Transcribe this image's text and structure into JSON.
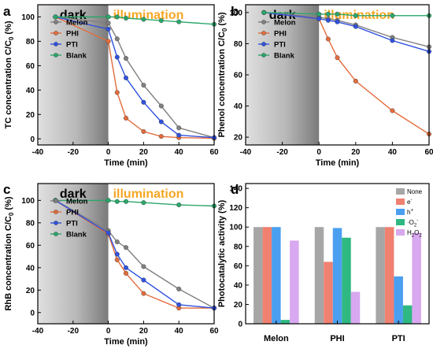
{
  "chart_data": [
    {
      "panel": "a",
      "type": "line",
      "annotations": [
        "dark",
        "illumination"
      ],
      "xlabel": "Time (min)",
      "ylabel": "TC concentration C/C0 (%)",
      "xlim": [
        -40,
        60
      ],
      "ylim": [
        -5,
        110
      ],
      "xticks": [
        -40,
        -20,
        0,
        20,
        40,
        60
      ],
      "yticks": [
        0,
        20,
        40,
        60,
        80,
        100
      ],
      "x": [
        -30,
        0,
        5,
        10,
        20,
        30,
        40,
        60
      ],
      "series": [
        {
          "name": "Melon",
          "color": "#808080",
          "values": [
            100,
            95,
            82,
            66,
            44,
            27,
            9,
            1
          ]
        },
        {
          "name": "PHI",
          "color": "#e46c3c",
          "values": [
            100,
            80,
            38,
            17,
            6,
            2,
            1,
            0.5
          ]
        },
        {
          "name": "PTI",
          "color": "#2f52e0",
          "values": [
            100,
            90,
            67,
            50,
            30,
            14,
            3,
            1
          ]
        },
        {
          "name": "Blank",
          "color": "#2aa76a",
          "values": [
            100,
            100,
            100,
            99,
            98,
            97,
            96,
            94
          ]
        }
      ],
      "legend": "left"
    },
    {
      "panel": "b",
      "type": "line",
      "annotations": [
        "dark",
        "illumination"
      ],
      "xlabel": "Time (min)",
      "ylabel": "Phenol concentration C/C0 (%)",
      "xlim": [
        -40,
        60
      ],
      "ylim": [
        15,
        105
      ],
      "xticks": [
        -40,
        -20,
        0,
        20,
        40,
        60
      ],
      "yticks": [
        20,
        40,
        60,
        80,
        100
      ],
      "x": [
        -30,
        0,
        5,
        10,
        20,
        40,
        60
      ],
      "series": [
        {
          "name": "Melon",
          "color": "#808080",
          "values": [
            100,
            97,
            96,
            95,
            92,
            84,
            78
          ]
        },
        {
          "name": "PHI",
          "color": "#e46c3c",
          "values": [
            100,
            96,
            83,
            71,
            56,
            37,
            22
          ]
        },
        {
          "name": "PTI",
          "color": "#2f52e0",
          "values": [
            100,
            96,
            95,
            94,
            91,
            82,
            75
          ]
        },
        {
          "name": "Blank",
          "color": "#2aa76a",
          "values": [
            100,
            99,
            99,
            99,
            98,
            98,
            98
          ]
        }
      ],
      "legend": "left"
    },
    {
      "panel": "c",
      "type": "line",
      "annotations": [
        "dark",
        "illumination"
      ],
      "xlabel": "Time (min)",
      "ylabel": "RhB concentration C/C0 (%)",
      "xlim": [
        -40,
        60
      ],
      "ylim": [
        -10,
        115
      ],
      "xticks": [
        -40,
        -20,
        0,
        20,
        40,
        60
      ],
      "yticks": [
        0,
        20,
        40,
        60,
        80,
        100
      ],
      "x": [
        -30,
        0,
        5,
        10,
        20,
        40,
        60
      ],
      "series": [
        {
          "name": "Melon",
          "color": "#808080",
          "values": [
            100,
            73,
            63,
            58,
            41,
            21,
            4
          ]
        },
        {
          "name": "PHI",
          "color": "#e46c3c",
          "values": [
            100,
            70,
            47,
            35,
            17,
            4,
            4
          ]
        },
        {
          "name": "PTI",
          "color": "#2f52e0",
          "values": [
            100,
            71,
            52,
            40,
            29,
            7,
            4
          ]
        },
        {
          "name": "Blank",
          "color": "#2aa76a",
          "values": [
            100,
            100,
            99,
            99,
            98,
            96,
            95
          ]
        }
      ],
      "legend": "left"
    },
    {
      "panel": "d",
      "type": "bar",
      "xlabel": "",
      "ylabel": "Photocatalytic activity (%)",
      "ylim": [
        0,
        145
      ],
      "yticks": [
        0,
        20,
        40,
        60,
        80,
        100,
        120,
        140
      ],
      "categories": [
        "Melon",
        "PHI",
        "PTI"
      ],
      "series": [
        {
          "name": "None",
          "color": "#a6a6a6",
          "values": [
            100,
            100,
            100
          ]
        },
        {
          "name": "e-",
          "color": "#f08070",
          "values": [
            100,
            64,
            100
          ]
        },
        {
          "name": "h+",
          "color": "#4b9ff0",
          "values": [
            100,
            99,
            49
          ]
        },
        {
          "name": "·O2-",
          "color": "#2fb882",
          "values": [
            4,
            89,
            19
          ]
        },
        {
          "name": "H2O2",
          "color": "#d8a8f0",
          "values": [
            86,
            33,
            94
          ]
        }
      ],
      "legend": "top-right"
    }
  ],
  "panel_labels": [
    "a",
    "b",
    "c",
    "d"
  ]
}
